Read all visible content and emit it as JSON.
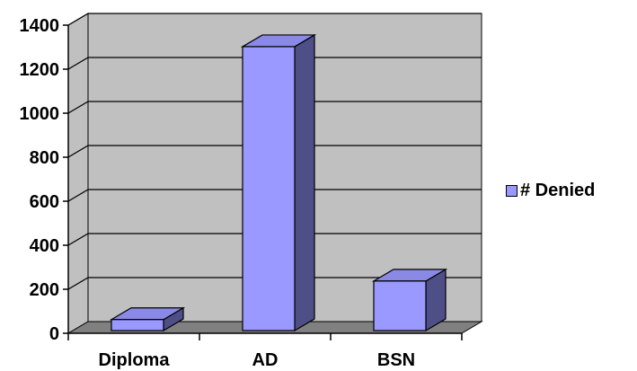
{
  "chart_data": {
    "type": "bar",
    "categories": [
      "Diploma",
      "AD",
      "BSN"
    ],
    "series": [
      {
        "name": "# Denied",
        "values": [
          50,
          1290,
          225
        ]
      }
    ],
    "title": "",
    "xlabel": "",
    "ylabel": "",
    "ylim": [
      0,
      1400
    ],
    "yticks": [
      0,
      200,
      400,
      600,
      800,
      1000,
      1200,
      1400
    ],
    "grid": true,
    "legend_position": "right",
    "three_d": true,
    "colors": {
      "bar_front": "#9999ff",
      "bar_top": "#8a8ae6",
      "bar_side": "#4f4f88",
      "plot_wall": "#c0c0c0",
      "floor": "#808080",
      "grid": "#000000"
    }
  }
}
